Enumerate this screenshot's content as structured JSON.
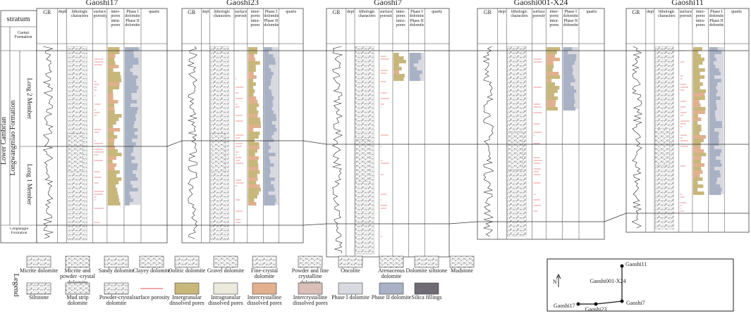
{
  "stratum": {
    "header": "stratum",
    "era": "Lower Cambrian",
    "formation": "Longwangmiao Formation",
    "top": "Gaotai Formation",
    "upper_member": "Long 2 Member",
    "lower_member": "Long 1 Member",
    "bottom": "Canglangpu Formation"
  },
  "column_headers": {
    "gr": "GR",
    "depth": "depth/m",
    "lithology": "lithologic characters",
    "surface": "surface porosity",
    "pores": "inter-pores intra-pores",
    "dolomite": "Phase I dolomite Phase II dolomite",
    "quartz": "quartz"
  },
  "wells": [
    {
      "name": "Gaoshi17"
    },
    {
      "name": "Gaoshi23"
    },
    {
      "name": "Gaoshi7"
    },
    {
      "name": "Gaoshi001-X24"
    },
    {
      "name": "Gaoshi11"
    }
  ],
  "legend": {
    "title": "Legend",
    "items": [
      {
        "label": "Micrite dolomite"
      },
      {
        "label": "Micrite and powder -crystal dolomite"
      },
      {
        "label": "Sandy dolomite"
      },
      {
        "label": "Clayey dolomite"
      },
      {
        "label": "Oolitic dolomite"
      },
      {
        "label": "Gravel dolomite"
      },
      {
        "label": "Fine-crystal dolomite"
      },
      {
        "label": "Powder and fine crystalline dolomite"
      },
      {
        "label": "Oncolite"
      },
      {
        "label": "Arenaceous dolomite"
      },
      {
        "label": "Dolomite siltstone"
      },
      {
        "label": "Mudstone"
      },
      {
        "label": "Siltstone"
      },
      {
        "label": "Mud strip dolomite"
      },
      {
        "label": "Powder-crystal dolomite"
      },
      {
        "label": "surface porosity",
        "color": "#e05050"
      },
      {
        "label": "Intergranular dissolved pores",
        "color": "#c8b77a"
      },
      {
        "label": "Intragranular dissolved pores",
        "color": "#ece9dd"
      },
      {
        "label": "Intercrystalline dissolved pores",
        "color": "#e2b08e"
      },
      {
        "label": "Intercrystalline dissolved pores",
        "color": "#d9bfb7"
      },
      {
        "label": "Phase I dolomite",
        "color": "#d9d9e1"
      },
      {
        "label": "Phase II dolomite",
        "color": "#a8b2c4"
      },
      {
        "label": "Silica fillings",
        "color": "#6f6a73"
      }
    ]
  },
  "map": {
    "north": "N",
    "wells": [
      "Gaoshi11",
      "Gaoshi001-X24",
      "Gaoshi17",
      "Gaoshi23",
      "Gaoshi7"
    ]
  }
}
